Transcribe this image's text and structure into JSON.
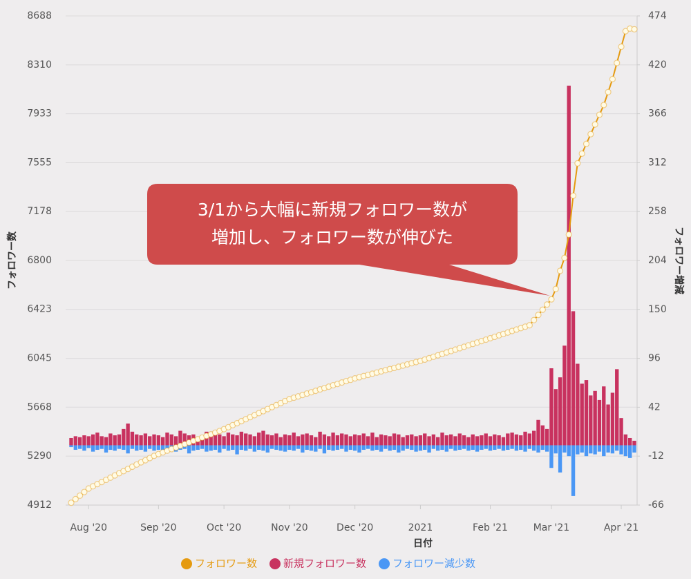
{
  "chart_data": {
    "type": "combo",
    "x_label": "日付",
    "y_label": "フォロワー数",
    "y2_label": "フォロワー増減",
    "annotation": {
      "lines": [
        "3/1から大幅に新規フォロワー数が",
        "増加し、フォロワー数が伸びた"
      ]
    },
    "categories": [
      null,
      null,
      null,
      null,
      "Aug '20",
      null,
      null,
      null,
      null,
      null,
      null,
      null,
      null,
      null,
      null,
      null,
      null,
      null,
      null,
      null,
      "Sep '20",
      null,
      null,
      null,
      null,
      null,
      null,
      null,
      null,
      null,
      null,
      null,
      null,
      null,
      null,
      "Oct '20",
      null,
      null,
      null,
      null,
      null,
      null,
      null,
      null,
      null,
      null,
      null,
      null,
      null,
      null,
      "Nov '20",
      null,
      null,
      null,
      null,
      null,
      null,
      null,
      null,
      null,
      null,
      null,
      null,
      null,
      null,
      "Dec '20",
      null,
      null,
      null,
      null,
      null,
      null,
      null,
      null,
      null,
      null,
      null,
      null,
      null,
      null,
      "2021",
      null,
      null,
      null,
      null,
      null,
      null,
      null,
      null,
      null,
      null,
      null,
      null,
      null,
      null,
      null,
      "Feb '21",
      null,
      null,
      null,
      null,
      null,
      null,
      null,
      null,
      null,
      null,
      null,
      null,
      null,
      "Mar '21",
      null,
      null,
      null,
      null,
      null,
      null,
      null,
      null,
      null,
      null,
      null,
      null,
      null,
      null,
      null,
      "Apr '21",
      null,
      null,
      null
    ],
    "ylim": [
      4912,
      8688
    ],
    "yticks": [
      4912,
      5290,
      5668,
      6045,
      6423,
      6800,
      7178,
      7555,
      7933,
      8310,
      8688
    ],
    "y2lim": [
      -66,
      474
    ],
    "y2ticks": [
      -66,
      -12,
      42,
      96,
      150,
      204,
      258,
      312,
      366,
      420,
      474
    ],
    "grid": true,
    "marker_fill": "#fffbe6",
    "series": [
      {
        "name": "フォロワー数",
        "type": "line",
        "color": "#e59a0f",
        "values": [
          4930,
          4958,
          4985,
          5013,
          5040,
          5057,
          5074,
          5090,
          5107,
          5124,
          5141,
          5158,
          5174,
          5191,
          5208,
          5225,
          5242,
          5258,
          5275,
          5292,
          5306,
          5319,
          5332,
          5344,
          5357,
          5370,
          5382,
          5395,
          5408,
          5420,
          5433,
          5446,
          5458,
          5471,
          5484,
          5498,
          5513,
          5529,
          5544,
          5560,
          5575,
          5591,
          5606,
          5622,
          5637,
          5653,
          5668,
          5684,
          5699,
          5715,
          5730,
          5741,
          5751,
          5762,
          5773,
          5783,
          5794,
          5805,
          5815,
          5826,
          5837,
          5847,
          5858,
          5869,
          5879,
          5890,
          5899,
          5908,
          5917,
          5926,
          5935,
          5944,
          5953,
          5962,
          5971,
          5980,
          5989,
          5998,
          6007,
          6016,
          6025,
          6035,
          6046,
          6057,
          6068,
          6079,
          6090,
          6101,
          6112,
          6123,
          6134,
          6145,
          6156,
          6167,
          6178,
          6189,
          6200,
          6211,
          6222,
          6233,
          6244,
          6256,
          6267,
          6278,
          6289,
          6300,
          6340,
          6380,
          6420,
          6460,
          6500,
          6580,
          6720,
          6820,
          7000,
          7300,
          7550,
          7625,
          7700,
          7775,
          7850,
          7925,
          8000,
          8100,
          8200,
          8325,
          8450,
          8570,
          8590,
          8585
        ]
      },
      {
        "name": "新規フォロワー数",
        "type": "bar",
        "axis": "y2",
        "color": "#c8325f",
        "values": [
          8,
          10,
          9,
          11,
          10,
          12,
          14,
          10,
          9,
          13,
          11,
          12,
          18,
          24,
          15,
          12,
          11,
          13,
          10,
          12,
          11,
          9,
          14,
          12,
          10,
          16,
          13,
          11,
          12,
          9,
          10,
          15,
          11,
          13,
          12,
          10,
          14,
          12,
          11,
          15,
          13,
          12,
          10,
          14,
          16,
          12,
          11,
          13,
          9,
          12,
          11,
          14,
          10,
          12,
          13,
          11,
          9,
          15,
          12,
          10,
          14,
          11,
          13,
          12,
          10,
          12,
          11,
          13,
          10,
          14,
          9,
          12,
          11,
          10,
          13,
          12,
          9,
          11,
          12,
          10,
          11,
          13,
          10,
          12,
          9,
          14,
          11,
          12,
          10,
          13,
          11,
          9,
          12,
          10,
          11,
          13,
          10,
          12,
          11,
          9,
          13,
          14,
          12,
          11,
          15,
          13,
          16,
          28,
          22,
          18,
          85,
          62,
          75,
          110,
          397,
          148,
          90,
          68,
          72,
          55,
          60,
          50,
          65,
          45,
          58,
          84,
          30,
          12,
          8,
          5
        ]
      },
      {
        "name": "フォロワー減少数",
        "type": "bar",
        "axis": "y2",
        "color": "#4a97f5",
        "values": [
          -2,
          -5,
          -4,
          -6,
          -3,
          -7,
          -5,
          -4,
          -8,
          -5,
          -6,
          -4,
          -5,
          -9,
          -4,
          -6,
          -5,
          -7,
          -4,
          -6,
          -5,
          -8,
          -4,
          -6,
          -7,
          -5,
          -4,
          -9,
          -6,
          -5,
          -4,
          -7,
          -6,
          -5,
          -8,
          -4,
          -6,
          -5,
          -10,
          -5,
          -6,
          -4,
          -7,
          -5,
          -6,
          -8,
          -4,
          -5,
          -6,
          -7,
          -5,
          -6,
          -4,
          -8,
          -5,
          -6,
          -7,
          -4,
          -9,
          -5,
          -6,
          -5,
          -4,
          -7,
          -5,
          -6,
          -8,
          -5,
          -4,
          -6,
          -5,
          -7,
          -4,
          -6,
          -5,
          -8,
          -6,
          -4,
          -5,
          -7,
          -6,
          -5,
          -8,
          -4,
          -6,
          -5,
          -7,
          -4,
          -6,
          -5,
          -4,
          -6,
          -5,
          -7,
          -5,
          -4,
          -6,
          -5,
          -4,
          -6,
          -5,
          -4,
          -6,
          -5,
          -7,
          -4,
          -6,
          -8,
          -5,
          -7,
          -25,
          -9,
          -30,
          -8,
          -12,
          -56,
          -10,
          -8,
          -12,
          -9,
          -10,
          -7,
          -12,
          -8,
          -9,
          -6,
          -10,
          -12,
          -14,
          -8
        ]
      }
    ]
  }
}
